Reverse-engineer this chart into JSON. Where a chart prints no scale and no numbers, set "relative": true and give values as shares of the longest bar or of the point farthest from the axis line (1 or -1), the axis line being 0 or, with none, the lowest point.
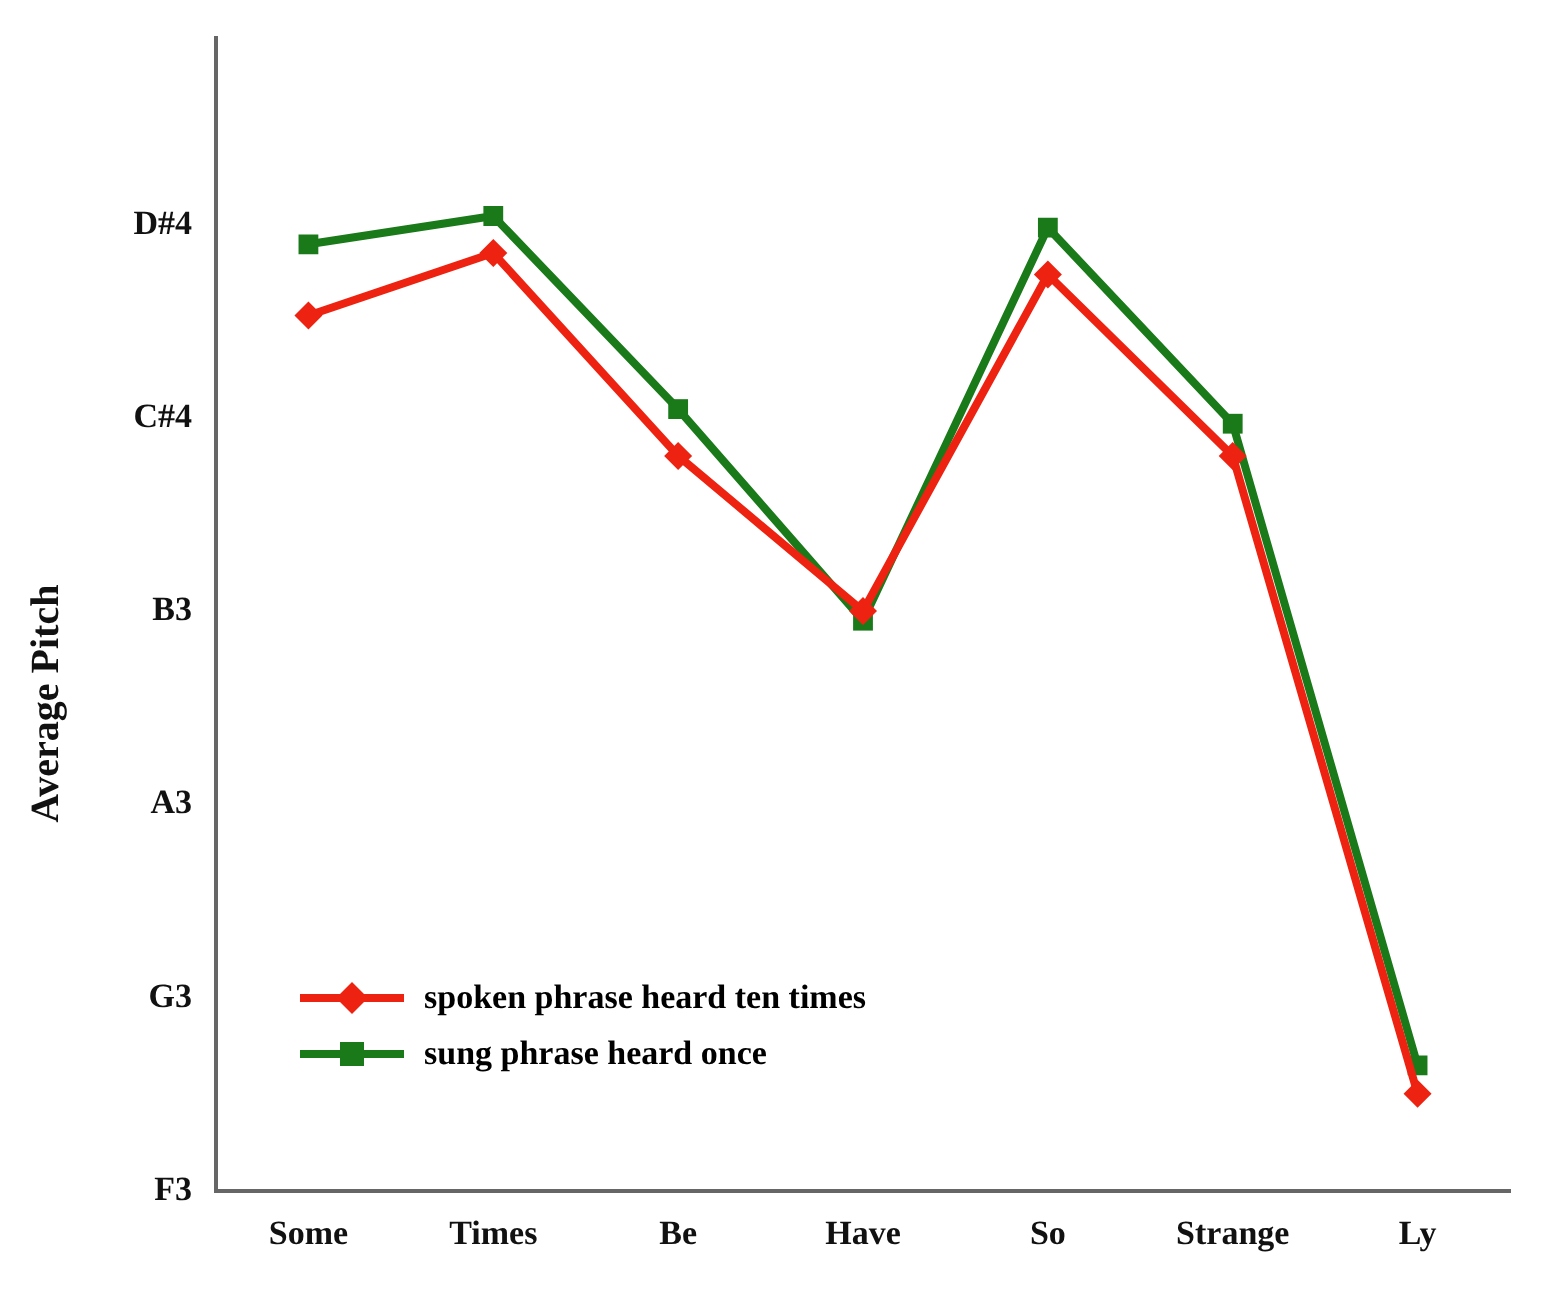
{
  "chart_data": {
    "type": "line",
    "ylabel": "Average Pitch",
    "relative": true,
    "categories": [
      "Some",
      "Times",
      "Be",
      "Have",
      "So",
      "Strange",
      "Ly"
    ],
    "series": [
      {
        "name": "spoken phrase heard ten times",
        "color": "#ee2211",
        "marker": "diamond",
        "values": [
          0.898,
          0.962,
          0.754,
          0.595,
          0.94,
          0.754,
          0.1
        ]
      },
      {
        "name": "sung phrase heard once",
        "color": "#1a7a1a",
        "marker": "square",
        "values": [
          0.971,
          1,
          0.802,
          0.585,
          0.988,
          0.787,
          0.129
        ]
      }
    ],
    "annotations": [
      "F3",
      "G3",
      "A3",
      "B3",
      "C#4",
      "D#4"
    ],
    "grid": false,
    "legend": "bottom left",
    "line_style": "solid"
  }
}
